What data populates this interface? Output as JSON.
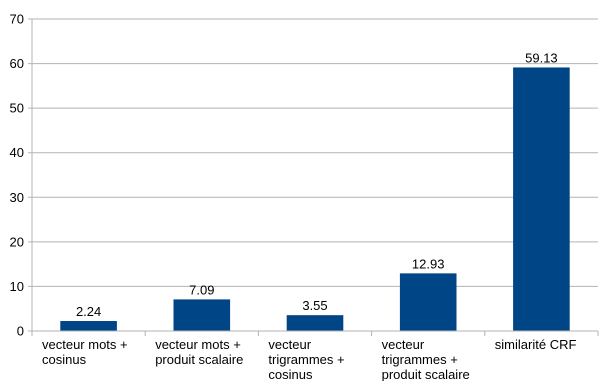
{
  "chart_data": {
    "type": "bar",
    "title": "",
    "xlabel": "",
    "ylabel": "",
    "categories": [
      [
        "vecteur mots +",
        "cosinus"
      ],
      [
        "vecteur mots +",
        "produit scalaire"
      ],
      [
        "vecteur",
        "trigrammes +",
        "cosinus"
      ],
      [
        "vecteur",
        "trigrammes +",
        "produit scalaire"
      ],
      [
        "similarité CRF"
      ]
    ],
    "values": [
      2.24,
      7.09,
      3.55,
      12.93,
      59.13
    ],
    "data_labels": [
      "2.24",
      "7.09",
      "3.55",
      "12.93",
      "59.13"
    ],
    "ylim": [
      0,
      70
    ],
    "yticks": [
      0,
      10,
      20,
      30,
      40,
      50,
      60,
      70
    ],
    "grid": true,
    "legend": "none",
    "colors": {
      "bar": "#004586",
      "grid": "#b3b3b3",
      "axis": "#b3b3b3"
    }
  }
}
